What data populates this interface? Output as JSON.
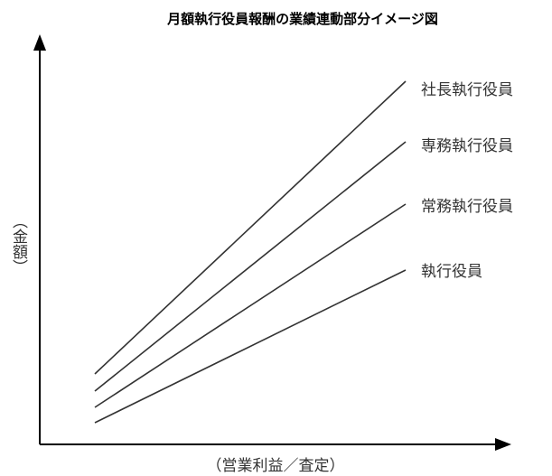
{
  "title": "月額執行役員報酬の業績連動部分イメージ図",
  "y_axis_label": "（金額）",
  "x_axis_label": "（営業利益／査定）",
  "lines": [
    {
      "label": "社長執行役員"
    },
    {
      "label": "専務執行役員"
    },
    {
      "label": "常務執行役員"
    },
    {
      "label": "執行役員"
    }
  ],
  "colors": {
    "lines": "#333333",
    "axes": "#000000",
    "background": "#ffffff"
  }
}
